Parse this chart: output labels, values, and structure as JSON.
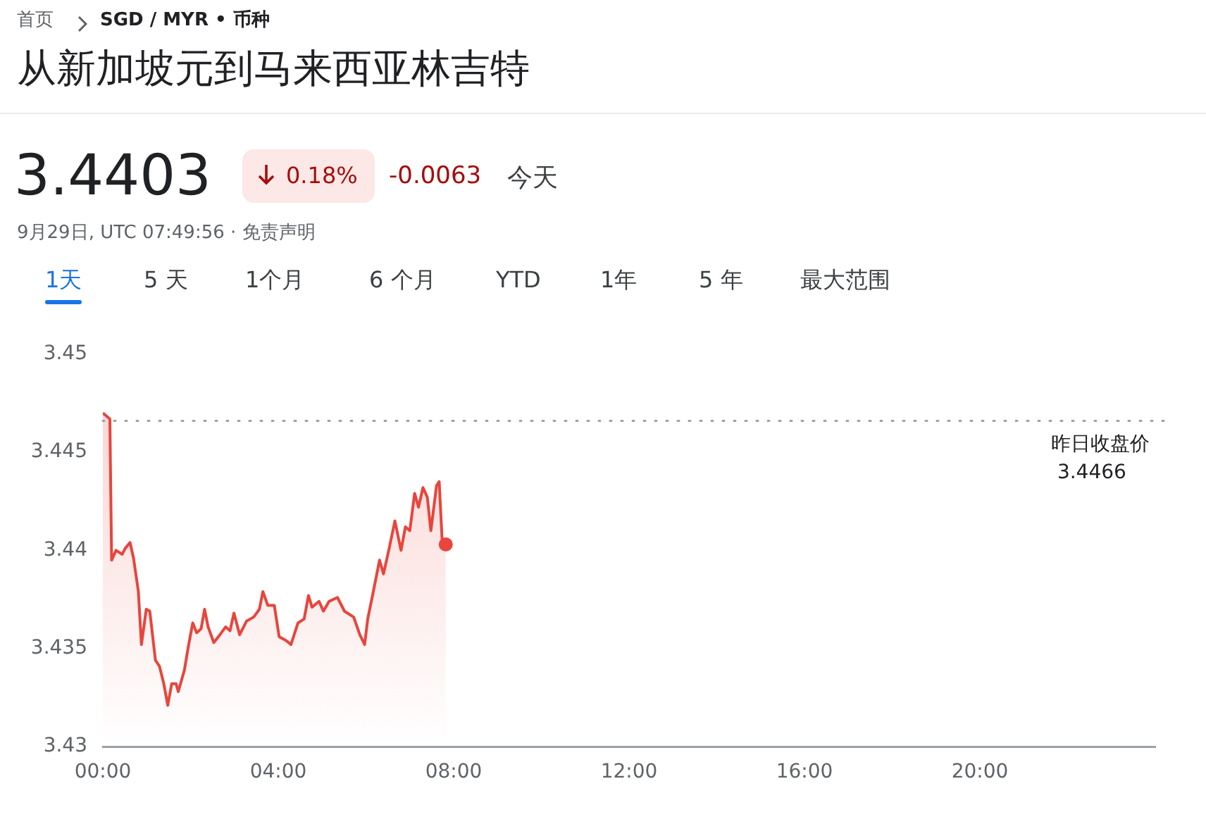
{
  "chart_data": {
    "type": "area",
    "title": "从新加坡元到马来西亚林吉特",
    "annotations": [
      "首页",
      "SGD / MYR • 币种",
      "3.4403",
      "0.18%",
      "-0.0063",
      "今天",
      "9月29日, UTC 07:49:56 · 免责声明",
      "1天",
      "5 天",
      "1个月",
      "6 个月",
      "YTD",
      "1年",
      "5 年",
      "最大范围"
    ],
    "x": [
      0,
      0.16,
      0.2,
      0.3,
      0.44,
      0.51,
      0.62,
      0.7,
      0.81,
      0.88,
      0.99,
      1.07,
      1.2,
      1.29,
      1.39,
      1.48,
      1.57,
      1.67,
      1.72,
      1.86,
      1.95,
      2.05,
      2.14,
      2.24,
      2.32,
      2.4,
      2.53,
      2.67,
      2.8,
      2.9,
      2.99,
      3.12,
      3.28,
      3.44,
      3.57,
      3.65,
      3.76,
      3.91,
      4.02,
      4.18,
      4.29,
      4.45,
      4.59,
      4.69,
      4.77,
      4.93,
      5.03,
      5.16,
      5.35,
      5.51,
      5.72,
      5.86,
      5.97,
      6.04,
      6.15,
      6.31,
      6.4,
      6.52,
      6.66,
      6.8,
      6.9,
      7.0,
      7.11,
      7.2,
      7.3,
      7.4,
      7.48,
      7.61,
      7.67,
      7.74,
      7.82
    ],
    "series": [
      {
        "color": "#e8453c",
        "values": [
          3.447,
          3.4467,
          3.4395,
          3.44,
          3.4398,
          3.4401,
          3.4404,
          3.4396,
          3.4379,
          3.4352,
          3.437,
          3.4369,
          3.4344,
          3.4341,
          3.4332,
          3.4321,
          3.4332,
          3.4332,
          3.4328,
          3.4339,
          3.4351,
          3.4363,
          3.4358,
          3.436,
          3.437,
          3.4361,
          3.4353,
          3.4357,
          3.4361,
          3.4359,
          3.4368,
          3.4357,
          3.4364,
          3.4366,
          3.437,
          3.4379,
          3.4372,
          3.4372,
          3.4356,
          3.4354,
          3.4352,
          3.4363,
          3.4365,
          3.4377,
          3.4371,
          3.4374,
          3.4369,
          3.4374,
          3.4376,
          3.4369,
          3.4366,
          3.4357,
          3.4352,
          3.4365,
          3.4377,
          3.4395,
          3.4388,
          3.44,
          3.4415,
          3.44,
          3.4412,
          3.441,
          3.4429,
          3.4422,
          3.4432,
          3.4427,
          3.441,
          3.4433,
          3.4435,
          3.4404,
          3.4403
        ]
      }
    ],
    "xlim": [
      0,
      24
    ],
    "xticks": [
      {
        "value": 0,
        "label": "00:00"
      },
      {
        "value": 4,
        "label": "04:00"
      },
      {
        "value": 8,
        "label": "08:00"
      },
      {
        "value": 12,
        "label": "12:00"
      },
      {
        "value": 16,
        "label": "16:00"
      },
      {
        "value": 20,
        "label": "20:00"
      }
    ],
    "ylim": [
      3.43,
      3.45
    ],
    "yticks": [
      3.43,
      3.435,
      3.44,
      3.445,
      3.45
    ],
    "ref_lines": [
      {
        "axis": "y",
        "value": 3.4466,
        "label": "昨日收盘价 3.4466",
        "line_style": "dotted",
        "color": "#9aa0a6"
      }
    ],
    "grid": false,
    "legend": false
  }
}
